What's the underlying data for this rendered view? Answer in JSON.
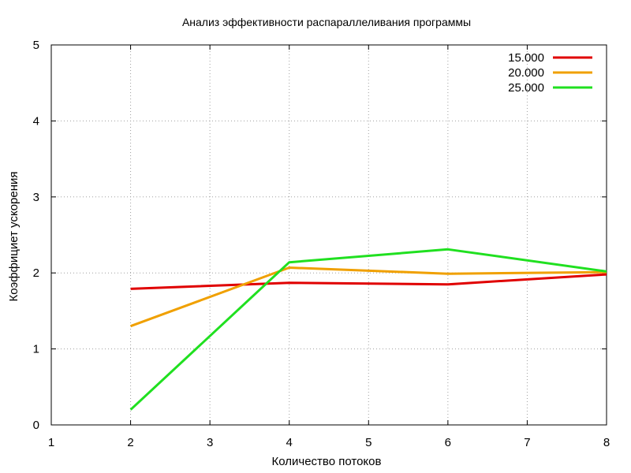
{
  "chart_data": {
    "type": "line",
    "title": "Анализ эффективности распараллеливания программы",
    "xlabel": "Количество потоков",
    "ylabel": "Коэффициет ускорения",
    "xlim": [
      1,
      8
    ],
    "ylim": [
      0,
      5
    ],
    "xticks": [
      1,
      2,
      3,
      4,
      5,
      6,
      7,
      8
    ],
    "yticks": [
      0,
      1,
      2,
      3,
      4,
      5
    ],
    "grid": true,
    "legend_position": "top-right",
    "series": [
      {
        "name": "15.000",
        "color": "#e00000",
        "x": [
          2,
          4,
          6,
          8
        ],
        "y": [
          1.79,
          1.87,
          1.85,
          1.98
        ]
      },
      {
        "name": "20.000",
        "color": "#f0a000",
        "x": [
          2,
          4,
          6,
          8
        ],
        "y": [
          1.3,
          2.07,
          1.99,
          2.01
        ]
      },
      {
        "name": "25.000",
        "color": "#20e020",
        "x": [
          2,
          4,
          6,
          8
        ],
        "y": [
          0.2,
          2.14,
          2.31,
          2.02
        ]
      }
    ]
  }
}
